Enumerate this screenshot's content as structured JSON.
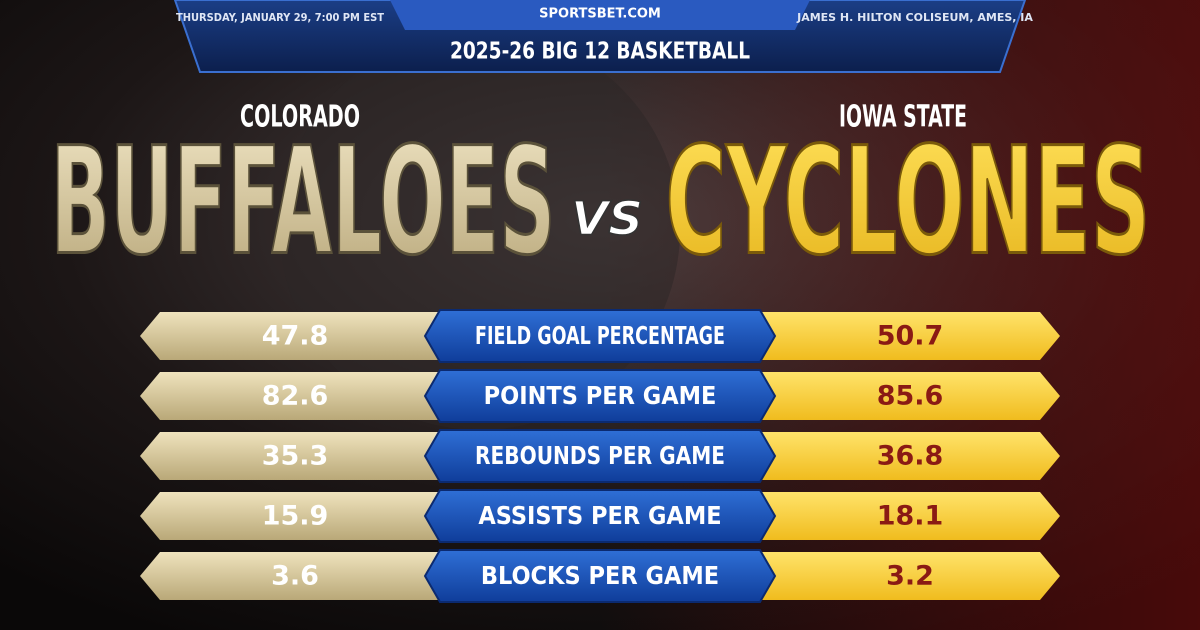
{
  "header": {
    "date": "THURSDAY, JANUARY 29, 7:00 PM EST",
    "site": "SPORTSBET.COM",
    "venue": "JAMES H. HILTON COLISEUM, AMES, IA",
    "title": "2025-26 BIG 12 BASKETBALL"
  },
  "teams": {
    "left": {
      "school": "COLORADO",
      "name": "BUFFALOES"
    },
    "right": {
      "school": "IOWA STATE",
      "name": "CYCLONES"
    }
  },
  "versus": "VS",
  "stats": [
    {
      "label": "FIELD GOAL PERCENTAGE",
      "left": "47.8",
      "right": "50.7"
    },
    {
      "label": "POINTS PER GAME",
      "left": "82.6",
      "right": "85.6"
    },
    {
      "label": "REBOUNDS PER GAME",
      "left": "35.3",
      "right": "36.8"
    },
    {
      "label": "ASSISTS PER GAME",
      "left": "15.9",
      "right": "18.1"
    },
    {
      "label": "BLOCKS PER GAME",
      "left": "3.6",
      "right": "3.2"
    }
  ]
}
